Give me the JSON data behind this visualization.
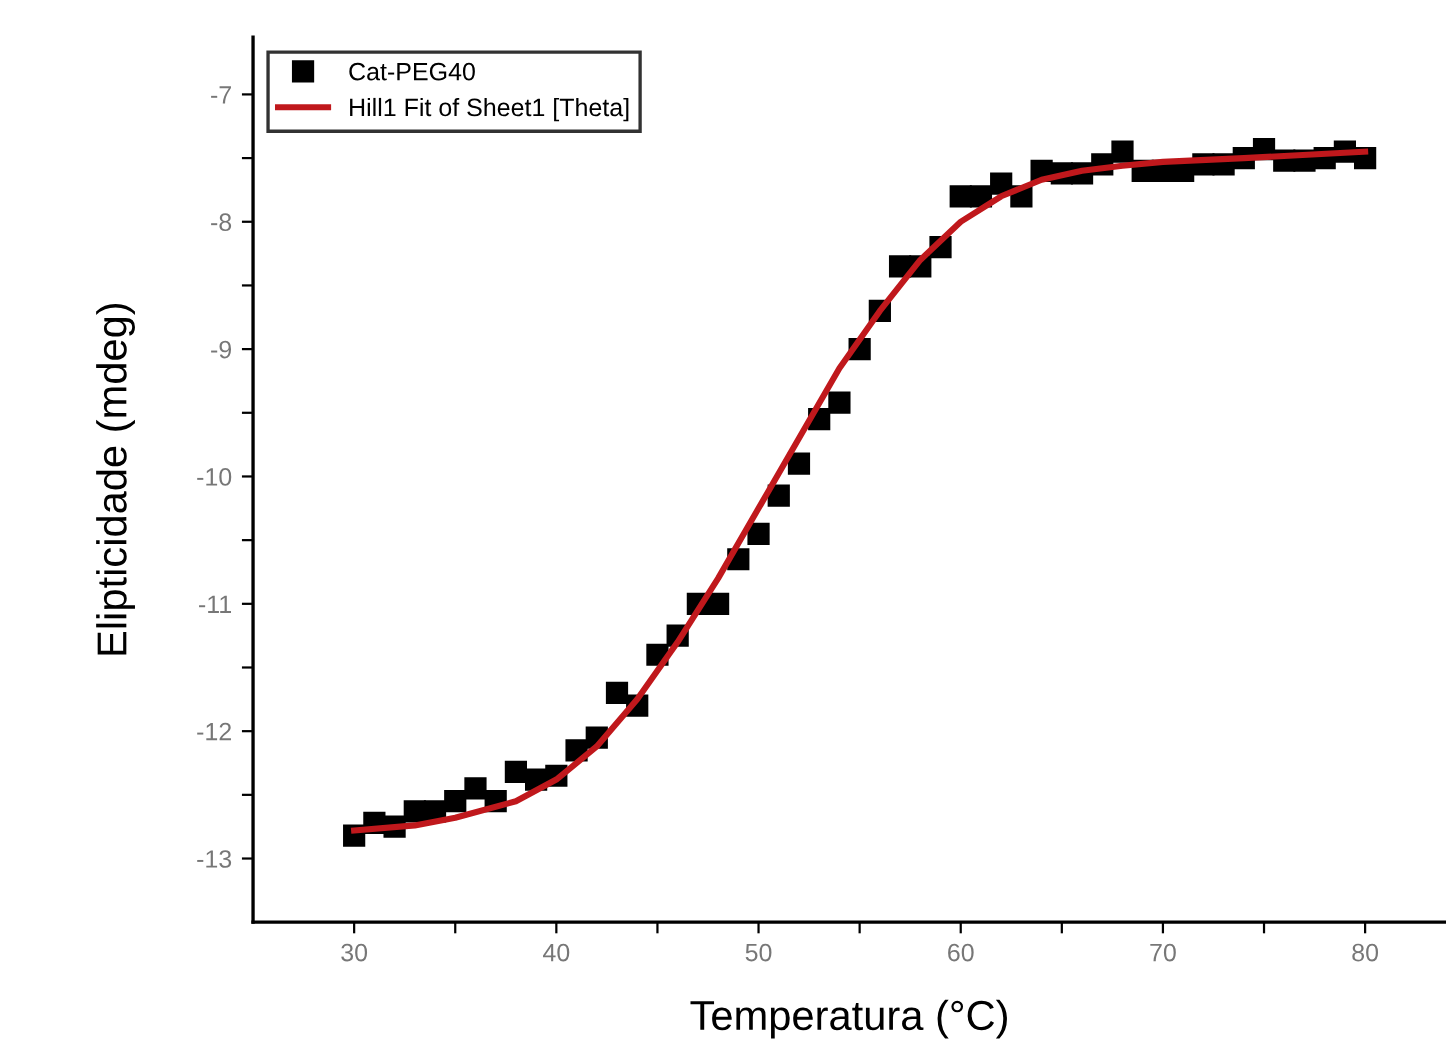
{
  "chart_data": {
    "type": "scatter",
    "xlabel": "Temperatura (°C)",
    "ylabel": "Elipticidade (mdeg)",
    "xlim": [
      25,
      84
    ],
    "ylim": [
      -13.5,
      -6.55
    ],
    "xticks": [
      30,
      {
        "value": 35,
        "label": null
      },
      40,
      {
        "value": 45,
        "label": null
      },
      50,
      {
        "value": 55,
        "label": null
      },
      60,
      {
        "value": 65,
        "label": null
      },
      70,
      {
        "value": 75,
        "label": null
      },
      80
    ],
    "yticks": [
      -13,
      {
        "value": -12.5,
        "label": null
      },
      -12,
      {
        "value": -11.5,
        "label": null
      },
      -11,
      {
        "value": -10.5,
        "label": null
      },
      -10,
      {
        "value": -9.5,
        "label": null
      },
      -9,
      {
        "value": -8.5,
        "label": null
      },
      -8,
      {
        "value": -7.5,
        "label": null
      },
      -7
    ],
    "grid": false,
    "legend": "top left",
    "series": [
      {
        "name": "Cat-PEG40",
        "marker": "square",
        "color": "#000000",
        "x": [
          30,
          31,
          32,
          33,
          34,
          35,
          36,
          37,
          38,
          39,
          40,
          41,
          42,
          43,
          44,
          45,
          46,
          47,
          48,
          49,
          50,
          51,
          52,
          53,
          54,
          55,
          56,
          57,
          58,
          59,
          60,
          61,
          62,
          63,
          64,
          65,
          66,
          67,
          68,
          69,
          70,
          71,
          72,
          73,
          74,
          75,
          76,
          77,
          78,
          79,
          80
        ],
        "values": [
          -12.82,
          -12.72,
          -12.75,
          -12.63,
          -12.63,
          -12.55,
          -12.45,
          -12.55,
          -12.32,
          -12.38,
          -12.35,
          -12.15,
          -12.05,
          -11.7,
          -11.8,
          -11.4,
          -11.25,
          -11.0,
          -11.0,
          -10.65,
          -10.45,
          -10.15,
          -9.9,
          -9.55,
          -9.42,
          -9.0,
          -8.7,
          -8.35,
          -8.35,
          -8.2,
          -7.8,
          -7.8,
          -7.7,
          -7.8,
          -7.6,
          -7.62,
          -7.62,
          -7.55,
          -7.45,
          -7.6,
          -7.6,
          -7.6,
          -7.55,
          -7.55,
          -7.5,
          -7.43,
          -7.52,
          -7.52,
          -7.5,
          -7.45,
          -7.5
        ]
      },
      {
        "name": "Hill1 Fit of Sheet1 [Theta]",
        "type": "line",
        "marker": "none",
        "line_style": "solid",
        "color": "#c0181c",
        "x": [
          30,
          33,
          35,
          38,
          40,
          42,
          44,
          46,
          48,
          50,
          52,
          54,
          56,
          58,
          60,
          62,
          64,
          66,
          68,
          70,
          74,
          80
        ],
        "values": [
          -12.78,
          -12.74,
          -12.68,
          -12.55,
          -12.38,
          -12.12,
          -11.75,
          -11.3,
          -10.8,
          -10.25,
          -9.7,
          -9.15,
          -8.7,
          -8.3,
          -8.0,
          -7.8,
          -7.67,
          -7.6,
          -7.56,
          -7.53,
          -7.5,
          -7.45
        ]
      }
    ]
  }
}
